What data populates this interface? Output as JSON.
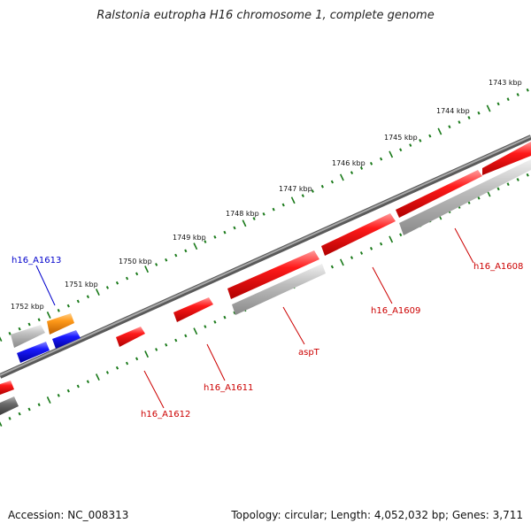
{
  "title": "Ralstonia eutropha H16 chromosome 1, complete genome",
  "footer": {
    "accession": "Accession: NC_008313",
    "summary": "Topology: circular; Length: 4,052,032 bp; Genes: 3,711"
  },
  "ruler_ticks": [
    "1743 kbp",
    "1744 kbp",
    "1745 kbp",
    "1746 kbp",
    "1747 kbp",
    "1748 kbp",
    "1749 kbp",
    "1750 kbp",
    "1751 kbp",
    "1752 kbp"
  ],
  "gene_labels": {
    "h16_A1613": "h16_A1613",
    "h16_A1608": "h16_A1608",
    "h16_A1609": "h16_A1609",
    "aspT": "aspT",
    "h16_A1611": "h16_A1611",
    "h16_A1612": "h16_A1612"
  },
  "colors": {
    "backbone": "#808080",
    "ruler": "#1a7a1a",
    "gene_red": "#ff0000",
    "gene_gray": "#b0b0b0",
    "gene_blue": "#1010ee",
    "gene_orange": "#ff8c00",
    "label_red": "#cc0000",
    "label_blue": "#0000cc"
  }
}
